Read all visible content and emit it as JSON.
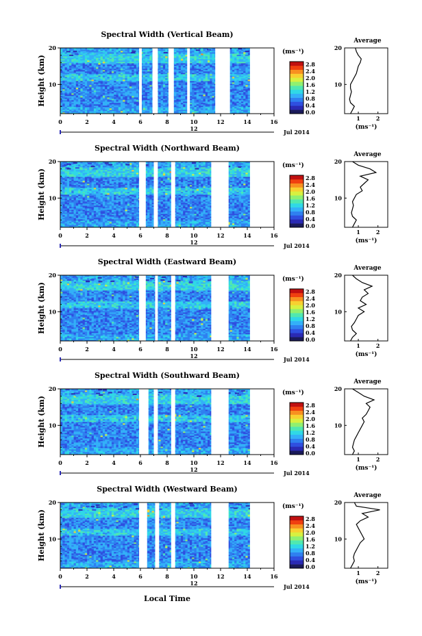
{
  "colors": {
    "colormap": [
      "#1a1a5a",
      "#2a2ab4",
      "#2f4fe0",
      "#2f80f0",
      "#33b0f8",
      "#30d8e6",
      "#50e8b0",
      "#90f070",
      "#d8f040",
      "#f8d030",
      "#f89020",
      "#f04010",
      "#c01010"
    ],
    "axis": "#000000",
    "gap": "#ffffff"
  },
  "shared": {
    "xlabel": "Local Time",
    "date_label": "Jul 2014",
    "day_label": "12",
    "ylabel": "Height (km)",
    "unit_label": "(ms⁻¹)",
    "avg_title": "Average",
    "avg_xlabel": "(ms⁻¹)",
    "colorbar_ticks": [
      "2.8",
      "2.4",
      "2.0",
      "1.6",
      "1.2",
      "0.8",
      "0.4",
      "0.0"
    ]
  },
  "chart_data": [
    {
      "type": "heatmap",
      "title": "Spectral Width (Vertical Beam)",
      "x_ticks": [
        "0",
        "2",
        "4",
        "6",
        "8",
        "10",
        "12",
        "14",
        "16"
      ],
      "y_ticks": [
        "20",
        "10"
      ],
      "xlim": [
        0,
        16
      ],
      "ylim": [
        2,
        20
      ],
      "gaps": [
        [
          5.9,
          6.1
        ],
        [
          6.9,
          7.3
        ],
        [
          8.1,
          8.5
        ],
        [
          9.5,
          9.7
        ],
        [
          11.6,
          12.7
        ],
        [
          14.2,
          16
        ]
      ],
      "avg_x_ticks": [
        "1",
        "2"
      ],
      "avg_profile": {
        "height": [
          2,
          3,
          4,
          5,
          6,
          7,
          8,
          9,
          10,
          11,
          12,
          13,
          14,
          15,
          16,
          17,
          18,
          19,
          20
        ],
        "width": [
          0.6,
          0.7,
          0.8,
          0.6,
          0.55,
          0.6,
          0.65,
          0.6,
          0.6,
          0.7,
          0.8,
          0.9,
          0.95,
          1.0,
          1.1,
          1.15,
          1.0,
          0.9,
          0.85
        ]
      }
    },
    {
      "type": "heatmap",
      "title": "Spectral Width (Northward Beam)",
      "x_ticks": [
        "0",
        "2",
        "4",
        "6",
        "8",
        "10",
        "12",
        "14",
        "16"
      ],
      "y_ticks": [
        "20",
        "10"
      ],
      "xlim": [
        0,
        16
      ],
      "ylim": [
        2,
        20
      ],
      "gaps": [
        [
          5.9,
          6.4
        ],
        [
          7.0,
          7.3
        ],
        [
          8.3,
          8.6
        ],
        [
          11.3,
          12.6
        ],
        [
          14.2,
          16
        ]
      ],
      "avg_x_ticks": [
        "1",
        "2"
      ],
      "avg_profile": {
        "height": [
          2,
          3,
          4,
          5,
          6,
          7,
          8,
          9,
          10,
          11,
          12,
          13,
          14,
          15,
          16,
          17,
          18,
          19,
          20
        ],
        "width": [
          0.7,
          0.8,
          0.9,
          0.7,
          0.65,
          0.7,
          0.75,
          0.7,
          0.8,
          0.9,
          1.2,
          1.1,
          1.3,
          1.5,
          1.1,
          1.9,
          1.6,
          1.0,
          0.7
        ]
      }
    },
    {
      "type": "heatmap",
      "title": "Spectral Width (Eastward Beam)",
      "x_ticks": [
        "0",
        "2",
        "4",
        "6",
        "8",
        "10",
        "12",
        "14",
        "16"
      ],
      "y_ticks": [
        "20",
        "10"
      ],
      "xlim": [
        0,
        16
      ],
      "ylim": [
        2,
        20
      ],
      "gaps": [
        [
          5.9,
          6.4
        ],
        [
          7.1,
          7.3
        ],
        [
          8.3,
          8.6
        ],
        [
          11.3,
          12.6
        ],
        [
          14.2,
          16
        ]
      ],
      "avg_x_ticks": [
        "1",
        "2"
      ],
      "avg_profile": {
        "height": [
          2,
          3,
          4,
          5,
          6,
          7,
          8,
          9,
          10,
          11,
          12,
          13,
          14,
          15,
          16,
          17,
          18,
          19,
          20
        ],
        "width": [
          0.6,
          0.7,
          0.9,
          0.7,
          0.65,
          0.8,
          0.9,
          1.0,
          1.3,
          1.0,
          1.4,
          1.1,
          1.2,
          1.5,
          1.3,
          1.7,
          1.2,
          0.9,
          0.7
        ]
      }
    },
    {
      "type": "heatmap",
      "title": "Spectral Width (Southward Beam)",
      "x_ticks": [
        "0",
        "2",
        "4",
        "6",
        "8",
        "10",
        "12",
        "14",
        "16"
      ],
      "y_ticks": [
        "20",
        "10"
      ],
      "xlim": [
        0,
        16
      ],
      "ylim": [
        2,
        20
      ],
      "gaps": [
        [
          5.9,
          6.6
        ],
        [
          7.0,
          7.3
        ],
        [
          8.3,
          8.6
        ],
        [
          11.3,
          12.6
        ],
        [
          14.2,
          16
        ]
      ],
      "avg_x_ticks": [
        "1",
        "2"
      ],
      "avg_profile": {
        "height": [
          2,
          3,
          4,
          5,
          6,
          7,
          8,
          9,
          10,
          11,
          12,
          13,
          14,
          15,
          16,
          17,
          18,
          19,
          20
        ],
        "width": [
          0.7,
          0.8,
          0.7,
          0.75,
          0.8,
          0.9,
          1.0,
          1.1,
          1.2,
          1.3,
          1.2,
          1.4,
          1.5,
          1.6,
          1.4,
          1.8,
          1.3,
          1.0,
          0.7
        ]
      }
    },
    {
      "type": "heatmap",
      "title": "Spectral Width (Westward Beam)",
      "x_ticks": [
        "0",
        "2",
        "4",
        "6",
        "8",
        "10",
        "12",
        "14",
        "16"
      ],
      "y_ticks": [
        "20",
        "10"
      ],
      "xlim": [
        0,
        16
      ],
      "ylim": [
        2,
        20
      ],
      "gaps": [
        [
          5.9,
          6.5
        ],
        [
          7.1,
          7.4
        ],
        [
          8.3,
          8.6
        ],
        [
          11.3,
          12.6
        ],
        [
          14.2,
          16
        ]
      ],
      "avg_x_ticks": [
        "1",
        "2"
      ],
      "avg_profile": {
        "height": [
          2,
          3,
          4,
          5,
          6,
          7,
          8,
          9,
          10,
          11,
          12,
          13,
          14,
          15,
          16,
          17,
          18,
          19,
          20
        ],
        "width": [
          0.6,
          0.7,
          0.8,
          0.75,
          0.8,
          0.9,
          1.0,
          1.1,
          1.3,
          1.2,
          1.1,
          1.0,
          0.9,
          1.1,
          1.5,
          1.2,
          2.1,
          0.9,
          0.8
        ]
      }
    }
  ]
}
